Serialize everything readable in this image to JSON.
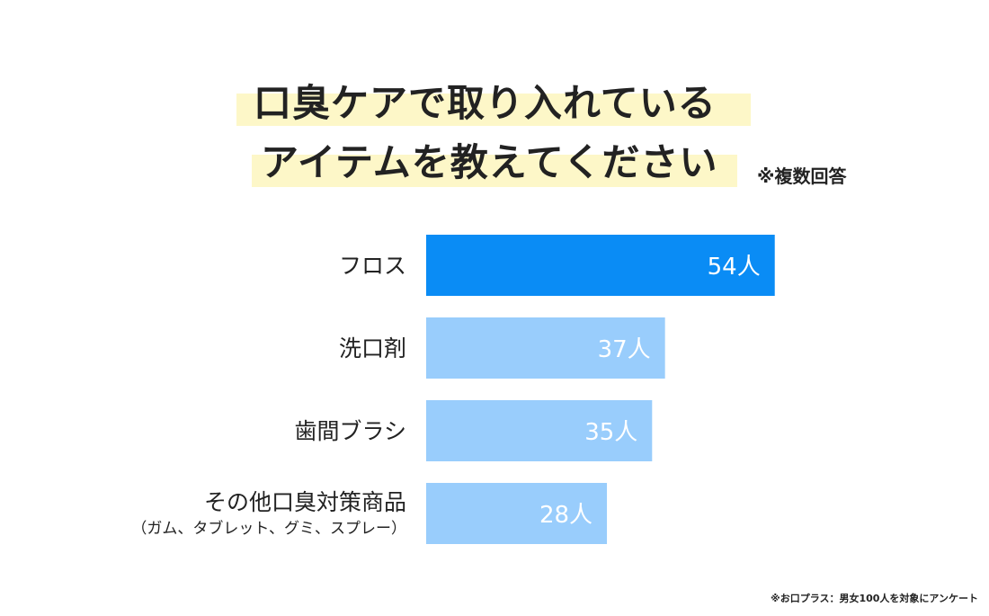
{
  "title": {
    "line1": "口臭ケアで取り入れている",
    "line2": "アイテムを教えてください",
    "note": "※複数回答"
  },
  "chart_data": {
    "type": "bar",
    "orientation": "horizontal",
    "categories": [
      {
        "label": "フロス",
        "sublabel": ""
      },
      {
        "label": "洗口剤",
        "sublabel": ""
      },
      {
        "label": "歯間ブラシ",
        "sublabel": ""
      },
      {
        "label": "その他口臭対策商品",
        "sublabel": "（ガム、タブレット、グミ、スプレー）"
      }
    ],
    "values": [
      54,
      37,
      35,
      28
    ],
    "value_labels": [
      "54人",
      "37人",
      "35人",
      "28人"
    ],
    "colors": [
      "#0a8cf5",
      "#99cdfc",
      "#99cdfc",
      "#99cdfc"
    ],
    "xlim": [
      0,
      100
    ],
    "grid": false,
    "legend": "none"
  },
  "source": "※お口プラス：男女100人を対象にアンケート"
}
